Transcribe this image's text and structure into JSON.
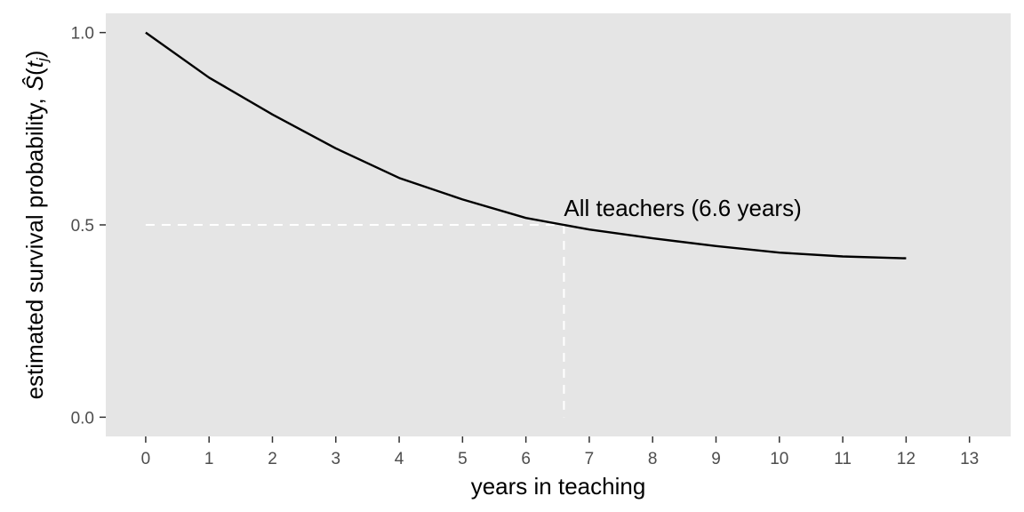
{
  "chart_data": {
    "type": "line",
    "xlabel": "years in teaching",
    "ylabel_prefix": "estimated survival probability,",
    "ylabel_symbol": "Ŝ",
    "ylabel_arg": "t",
    "ylabel_sub": "j",
    "xlim": [
      -0.63,
      13.65
    ],
    "ylim": [
      -0.05,
      1.05
    ],
    "x_ticks": [
      0,
      1,
      2,
      3,
      4,
      5,
      6,
      7,
      8,
      9,
      10,
      11,
      12,
      13
    ],
    "y_ticks": [
      0.0,
      0.5,
      1.0
    ],
    "y_tick_labels": [
      "0.0",
      "0.5",
      "1.0"
    ],
    "grid": false,
    "series": [
      {
        "x": [
          0,
          1,
          2,
          3,
          4,
          5,
          6,
          7,
          8,
          9,
          10,
          11,
          12
        ],
        "y": [
          1.0,
          0.883,
          0.787,
          0.699,
          0.622,
          0.566,
          0.518,
          0.488,
          0.465,
          0.445,
          0.428,
          0.418,
          0.413
        ],
        "color": "#000000"
      }
    ],
    "median_marker": {
      "x": 6.6,
      "y": 0.5,
      "color": "#ffffff"
    },
    "annotation": {
      "text": "All teachers (6.6 years)",
      "x": 6.6,
      "y": 0.5
    },
    "panel_background": "#e5e5e5"
  }
}
